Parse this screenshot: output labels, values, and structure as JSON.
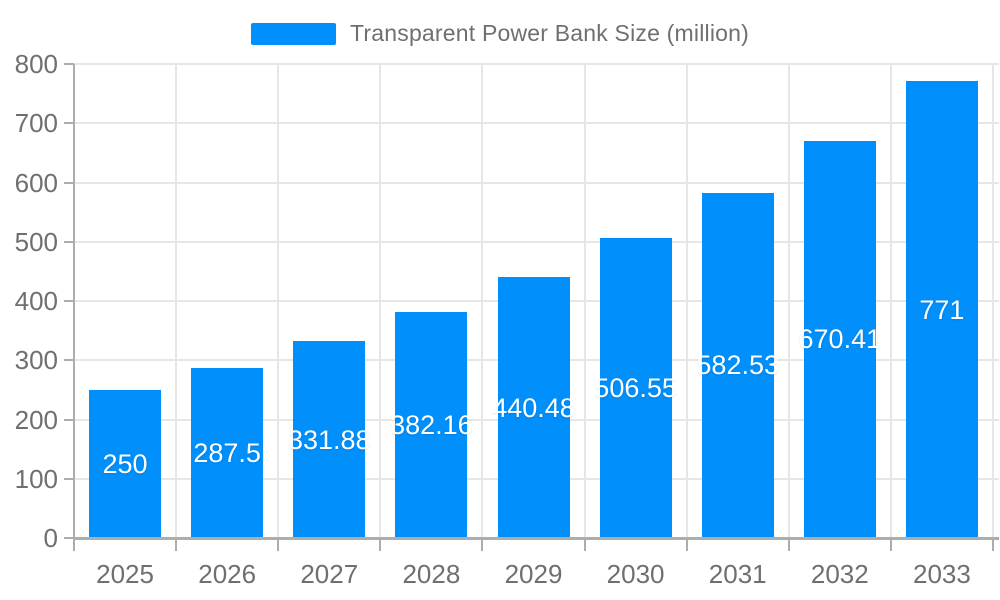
{
  "chart_data": {
    "type": "bar",
    "title": "Transparent Power Bank Size (million)",
    "categories": [
      "2025",
      "2026",
      "2027",
      "2028",
      "2029",
      "2030",
      "2031",
      "2032",
      "2033"
    ],
    "values": [
      250,
      287.5,
      331.88,
      382.16,
      440.48,
      506.55,
      582.53,
      670.41,
      771
    ],
    "data_labels": [
      "250",
      "287.5",
      "331.88",
      "382.16",
      "440.48",
      "506.55",
      "582.53",
      "670.41",
      "771"
    ],
    "xlabel": "",
    "ylabel": "",
    "ylim": [
      0,
      800
    ],
    "ytick_step": 100,
    "ytick_labels": [
      "0",
      "100",
      "200",
      "300",
      "400",
      "500",
      "600",
      "700",
      "800"
    ],
    "grid": true,
    "legend_position": "top",
    "colors": {
      "bar": "#008FFB",
      "bar_label": "#ffffff",
      "axis_text": "#6f6f6f",
      "legend_text": "#6f6f6f",
      "grid_line": "#e6e6e6",
      "axis_line": "#adadad"
    }
  }
}
